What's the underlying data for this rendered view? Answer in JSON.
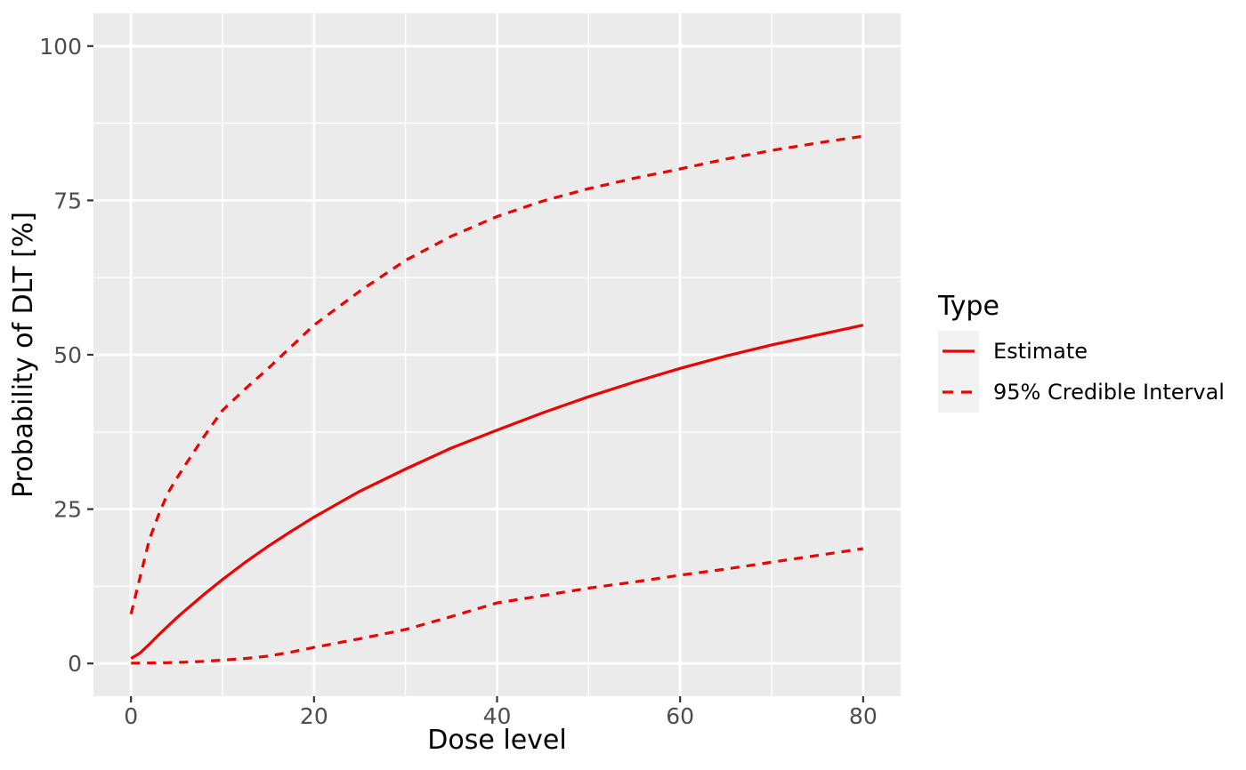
{
  "figure": {
    "background": "#FFFFFF"
  },
  "chart_data": {
    "type": "line",
    "title": "",
    "xlabel": "Dose level",
    "ylabel": "Probability of DLT [%]",
    "xlim": [
      -4.1,
      84.1
    ],
    "ylim": [
      -5.3,
      105.3
    ],
    "x_ticks": [
      0,
      20,
      40,
      60,
      80
    ],
    "x_minor_ticks": [
      10,
      30,
      50,
      70
    ],
    "y_ticks": [
      0,
      25,
      50,
      75,
      100
    ],
    "y_minor_ticks": [
      12.5,
      37.5,
      62.5,
      87.5
    ],
    "grid": true,
    "legend": {
      "title": "Type",
      "position": "right",
      "entries": [
        {
          "label": "Estimate",
          "line_style": "solid"
        },
        {
          "label": "95% Credible Interval",
          "line_style": "dashed"
        }
      ]
    },
    "colors": {
      "line": "#EE0000",
      "panel_bg": "#EBEBEB",
      "grid": "#FFFFFF",
      "axis_text": "#4D4D4D",
      "title_text": "#000000",
      "tick_mark": "#333333",
      "legend_key_bg": "#F2F2F2"
    },
    "x": [
      0,
      1,
      2,
      3,
      4,
      5,
      6,
      8,
      10,
      12.5,
      15,
      17.5,
      20,
      25,
      30,
      35,
      40,
      45,
      50,
      55,
      60,
      65,
      70,
      75,
      80
    ],
    "series": [
      {
        "name": "Estimate",
        "line_style": "solid",
        "values": [
          0.8,
          1.7,
          3.1,
          4.6,
          6.0,
          7.4,
          8.7,
          11.2,
          13.6,
          16.4,
          19.0,
          21.4,
          23.7,
          27.9,
          31.5,
          34.9,
          37.8,
          40.6,
          43.2,
          45.6,
          47.8,
          49.8,
          51.6,
          53.2,
          54.8
        ]
      },
      {
        "name": "95% Credible Interval upper",
        "line_style": "dashed",
        "values": [
          8.0,
          14.0,
          20.0,
          24.0,
          27.5,
          30.0,
          32.3,
          36.8,
          41.0,
          44.5,
          47.8,
          51.3,
          54.8,
          60.3,
          65.3,
          69.2,
          72.4,
          74.9,
          76.9,
          78.6,
          80.1,
          81.7,
          83.1,
          84.3,
          85.4
        ]
      },
      {
        "name": "95% Credible Interval lower",
        "line_style": "dashed",
        "values": [
          0.05,
          0.06,
          0.08,
          0.1,
          0.13,
          0.17,
          0.22,
          0.35,
          0.55,
          0.8,
          1.2,
          1.85,
          2.6,
          4.0,
          5.5,
          7.6,
          9.8,
          11.0,
          12.2,
          13.2,
          14.3,
          15.3,
          16.4,
          17.5,
          18.6
        ]
      }
    ]
  }
}
